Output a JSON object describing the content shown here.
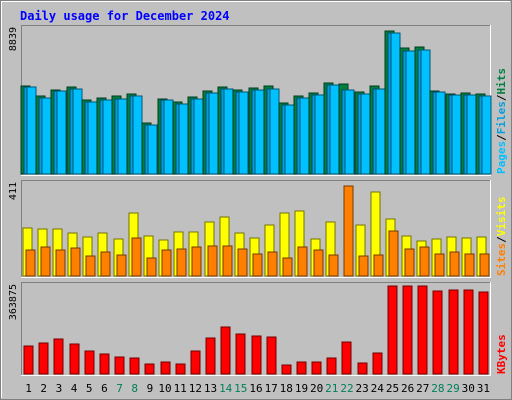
{
  "chart_data": {
    "type": "bar",
    "title": "Daily usage for December 2024",
    "days": [
      "1",
      "2",
      "3",
      "4",
      "5",
      "6",
      "7",
      "8",
      "9",
      "10",
      "11",
      "12",
      "13",
      "14",
      "15",
      "16",
      "17",
      "18",
      "19",
      "20",
      "21",
      "22",
      "23",
      "24",
      "25",
      "26",
      "27",
      "28",
      "29",
      "30",
      "31"
    ],
    "weekend_days": [
      "7",
      "8",
      "14",
      "15",
      "21",
      "22",
      "28",
      "29"
    ],
    "panels": [
      {
        "name": "hits-files-pages",
        "max_label": "8839",
        "ylim": [
          0,
          8839
        ],
        "legend": [
          "Pages",
          "Files",
          "Hits"
        ],
        "series": [
          {
            "name": "Hits",
            "color": "#008040",
            "values": [
              5370,
              4730,
              5100,
              5300,
              4530,
              4620,
              4750,
              4880,
              3080,
              4600,
              4370,
              4700,
              5090,
              5290,
              5100,
              5260,
              5340,
              4340,
              4740,
              4930,
              5550,
              5470,
              4980,
              5340,
              8720,
              7690,
              7730,
              5080,
              4890,
              4940,
              4850
            ]
          },
          {
            "name": "Files",
            "color": "#00a0e0",
            "values": [
              5290,
              4610,
              5040,
              5190,
              4390,
              4520,
              4580,
              4770,
              3000,
              4490,
              4250,
              4590,
              4940,
              5190,
              4980,
              5100,
              5200,
              4210,
              4610,
              4820,
              5400,
              5150,
              4860,
              5210,
              8580,
              7520,
              7530,
              4970,
              4790,
              4830,
              4740
            ]
          },
          {
            "name": "Pages",
            "color": "#00c0ff",
            "values": [
              5290,
              4610,
              5040,
              5190,
              4390,
              4520,
              4580,
              4770,
              3000,
              4490,
              4250,
              4590,
              4940,
              5190,
              4980,
              5100,
              5200,
              4210,
              4610,
              4820,
              5400,
              5150,
              4860,
              5210,
              8580,
              7520,
              7530,
              4970,
              4790,
              4830,
              4740
            ]
          }
        ]
      },
      {
        "name": "visits-sites",
        "max_label": "411",
        "ylim": [
          0,
          411
        ],
        "legend": [
          "Sites",
          "Visits"
        ],
        "series": [
          {
            "name": "Visits",
            "color": "#ffff00",
            "values": [
              215,
              210,
              210,
              190,
              175,
              190,
              165,
              280,
              180,
              160,
              195,
              195,
              240,
              265,
              190,
              170,
              230,
              280,
              290,
              165,
              240,
              0,
              230,
              375,
              255,
              180,
              155,
              165,
              175,
              170,
              175
            ]
          },
          {
            "name": "Sites",
            "color": "#ff8000",
            "values": [
              115,
              130,
              115,
              125,
              90,
              105,
              95,
              170,
              80,
              115,
              120,
              130,
              135,
              135,
              120,
              100,
              105,
              80,
              130,
              115,
              95,
              400,
              90,
              95,
              200,
              120,
              130,
              100,
              105,
              100,
              100
            ]
          }
        ]
      },
      {
        "name": "kbytes",
        "max_label": "363875",
        "ylim": [
          0,
          363875
        ],
        "legend": [
          "KBytes"
        ],
        "series": [
          {
            "name": "KBytes",
            "color": "#ff0000",
            "values": [
              115000,
              130000,
              143000,
              126000,
              95000,
              83000,
              71000,
              65000,
              40000,
              50000,
              42000,
              94000,
              150000,
              193000,
              166000,
              158000,
              155000,
              38000,
              49000,
              49000,
              66000,
              132000,
              47000,
              87000,
              363875,
              363875,
              363875,
              345000,
              346000,
              346000,
              340000
            ]
          }
        ]
      }
    ]
  }
}
